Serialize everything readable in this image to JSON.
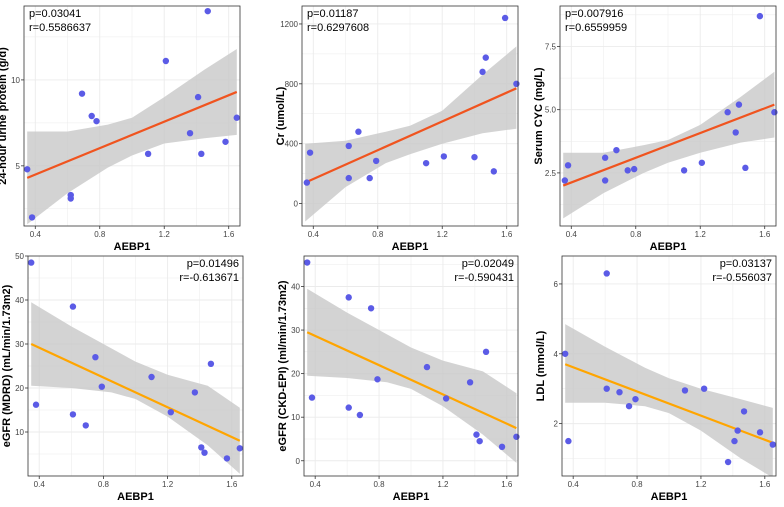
{
  "chart_data": [
    {
      "type": "scatter",
      "id": "urine-protein",
      "xlabel": "AEBP1",
      "ylabel": "24-hour urine protein (g/d)",
      "p_text": "p=0.03041",
      "r_text": "r=0.5586637",
      "stats_position": "top-left",
      "xlim": [
        0.33,
        1.67
      ],
      "ylim": [
        1.5,
        14.3
      ],
      "xticks": [
        0.4,
        0.8,
        1.2,
        1.6
      ],
      "xtick_labels": [
        "0.4",
        "0.8",
        "1.2",
        "1.6"
      ],
      "yticks": [
        5,
        10
      ],
      "ytick_labels": [
        "5",
        "10"
      ],
      "points": [
        {
          "x": 0.35,
          "y": 4.8
        },
        {
          "x": 0.38,
          "y": 2.0
        },
        {
          "x": 0.62,
          "y": 3.3
        },
        {
          "x": 0.62,
          "y": 3.1
        },
        {
          "x": 0.69,
          "y": 9.2
        },
        {
          "x": 0.75,
          "y": 7.9
        },
        {
          "x": 0.78,
          "y": 7.6
        },
        {
          "x": 1.1,
          "y": 5.7
        },
        {
          "x": 1.21,
          "y": 11.1
        },
        {
          "x": 1.36,
          "y": 6.9
        },
        {
          "x": 1.41,
          "y": 9.0
        },
        {
          "x": 1.43,
          "y": 5.7
        },
        {
          "x": 1.47,
          "y": 14.0
        },
        {
          "x": 1.58,
          "y": 6.4
        },
        {
          "x": 1.65,
          "y": 7.8
        }
      ],
      "fit_line": {
        "x": [
          0.35,
          1.65
        ],
        "y": [
          4.3,
          9.3
        ]
      },
      "ci_band": {
        "x": [
          0.35,
          0.6,
          0.85,
          1.0,
          1.2,
          1.45,
          1.65
        ],
        "lower": [
          1.6,
          3.4,
          4.9,
          5.6,
          6.3,
          6.6,
          6.8
        ],
        "upper": [
          7.0,
          7.0,
          7.4,
          7.8,
          9.0,
          10.6,
          11.8
        ]
      },
      "point_color": "#5b5be6",
      "line_color": "#f0541f",
      "band_color": "#c8c8c8"
    },
    {
      "type": "scatter",
      "id": "creatinine",
      "xlabel": "AEBP1",
      "ylabel": "Cr (umol/L)",
      "p_text": "p=0.01187",
      "r_text": "r=0.6297608",
      "stats_position": "top-left",
      "xlim": [
        0.33,
        1.67
      ],
      "ylim": [
        -150,
        1320
      ],
      "xticks": [
        0.4,
        0.8,
        1.2,
        1.6
      ],
      "xtick_labels": [
        "0.4",
        "0.8",
        "1.2",
        "1.6"
      ],
      "yticks": [
        0,
        400,
        800,
        1200
      ],
      "ytick_labels": [
        "0",
        "400",
        "800",
        "1200"
      ],
      "points": [
        {
          "x": 0.36,
          "y": 140
        },
        {
          "x": 0.38,
          "y": 340
        },
        {
          "x": 0.62,
          "y": 385
        },
        {
          "x": 0.62,
          "y": 170
        },
        {
          "x": 0.68,
          "y": 480
        },
        {
          "x": 0.75,
          "y": 170
        },
        {
          "x": 0.79,
          "y": 285
        },
        {
          "x": 1.1,
          "y": 270
        },
        {
          "x": 1.21,
          "y": 315
        },
        {
          "x": 1.4,
          "y": 310
        },
        {
          "x": 1.45,
          "y": 880
        },
        {
          "x": 1.47,
          "y": 975
        },
        {
          "x": 1.52,
          "y": 215
        },
        {
          "x": 1.59,
          "y": 1240
        },
        {
          "x": 1.66,
          "y": 800
        }
      ],
      "fit_line": {
        "x": [
          0.35,
          1.66
        ],
        "y": [
          140,
          770
        ]
      },
      "ci_band": {
        "x": [
          0.35,
          0.6,
          0.85,
          1.0,
          1.2,
          1.45,
          1.66
        ],
        "lower": [
          -120,
          110,
          270,
          330,
          400,
          470,
          500
        ],
        "upper": [
          400,
          420,
          480,
          520,
          620,
          860,
          1050
        ]
      },
      "point_color": "#5b5be6",
      "line_color": "#f0541f",
      "band_color": "#c8c8c8"
    },
    {
      "type": "scatter",
      "id": "serum-cyc",
      "xlabel": "AEBP1",
      "ylabel": "Serum CYC (mg/L)",
      "p_text": "p=0.007916",
      "r_text": "r=0.6559959",
      "stats_position": "top-left",
      "xlim": [
        0.33,
        1.67
      ],
      "ylim": [
        0.4,
        9.1
      ],
      "xticks": [
        0.4,
        0.8,
        1.2,
        1.6
      ],
      "xtick_labels": [
        "0.4",
        "0.8",
        "1.2",
        "1.6"
      ],
      "yticks": [
        2.5,
        5.0,
        7.5
      ],
      "ytick_labels": [
        "2.5",
        "5.0",
        "7.5"
      ],
      "points": [
        {
          "x": 0.36,
          "y": 2.2
        },
        {
          "x": 0.38,
          "y": 2.8
        },
        {
          "x": 0.61,
          "y": 3.1
        },
        {
          "x": 0.61,
          "y": 2.2
        },
        {
          "x": 0.68,
          "y": 3.4
        },
        {
          "x": 0.75,
          "y": 2.6
        },
        {
          "x": 0.79,
          "y": 2.65
        },
        {
          "x": 1.1,
          "y": 2.6
        },
        {
          "x": 1.21,
          "y": 2.9
        },
        {
          "x": 1.37,
          "y": 4.9
        },
        {
          "x": 1.42,
          "y": 4.1
        },
        {
          "x": 1.44,
          "y": 5.2
        },
        {
          "x": 1.48,
          "y": 2.7
        },
        {
          "x": 1.57,
          "y": 8.7
        },
        {
          "x": 1.66,
          "y": 4.9
        }
      ],
      "fit_line": {
        "x": [
          0.35,
          1.66
        ],
        "y": [
          2.0,
          5.2
        ]
      },
      "ci_band": {
        "x": [
          0.35,
          0.6,
          0.85,
          1.0,
          1.2,
          1.45,
          1.66
        ],
        "lower": [
          0.7,
          1.7,
          2.5,
          2.9,
          3.3,
          3.7,
          3.9
        ],
        "upper": [
          3.3,
          3.3,
          3.6,
          3.8,
          4.4,
          5.5,
          6.5
        ]
      },
      "point_color": "#5b5be6",
      "line_color": "#f0541f",
      "band_color": "#c8c8c8"
    },
    {
      "type": "scatter",
      "id": "egfr-mdrd",
      "xlabel": "AEBP1",
      "ylabel": "eGFR (MDRD) (mL/min/1.73m2)",
      "p_text": "p=0.01496",
      "r_text": "r=-0.613671",
      "stats_position": "top-right",
      "xlim": [
        0.33,
        1.67
      ],
      "ylim": [
        0,
        50
      ],
      "xticks": [
        0.4,
        0.8,
        1.2,
        1.6
      ],
      "xtick_labels": [
        "0.4",
        "0.8",
        "1.2",
        "1.6"
      ],
      "yticks": [
        10,
        20,
        30,
        40,
        50
      ],
      "ytick_labels": [
        "10",
        "20",
        "30",
        "40",
        "50"
      ],
      "points": [
        {
          "x": 0.35,
          "y": 48.5
        },
        {
          "x": 0.38,
          "y": 16.2
        },
        {
          "x": 0.61,
          "y": 38.5
        },
        {
          "x": 0.61,
          "y": 14.0
        },
        {
          "x": 0.69,
          "y": 11.5
        },
        {
          "x": 0.75,
          "y": 27.0
        },
        {
          "x": 0.79,
          "y": 20.3
        },
        {
          "x": 1.1,
          "y": 22.5
        },
        {
          "x": 1.22,
          "y": 14.5
        },
        {
          "x": 1.37,
          "y": 19.0
        },
        {
          "x": 1.41,
          "y": 6.5
        },
        {
          "x": 1.43,
          "y": 5.3
        },
        {
          "x": 1.47,
          "y": 25.5
        },
        {
          "x": 1.57,
          "y": 4.0
        },
        {
          "x": 1.65,
          "y": 6.3
        }
      ],
      "fit_line": {
        "x": [
          0.35,
          1.65
        ],
        "y": [
          30.0,
          8.0
        ]
      },
      "ci_band": {
        "x": [
          0.35,
          0.6,
          0.85,
          1.0,
          1.2,
          1.45,
          1.65
        ],
        "lower": [
          20.5,
          20.0,
          19.0,
          17.5,
          13.5,
          7.0,
          0.5
        ],
        "upper": [
          39.5,
          34.0,
          29.0,
          26.0,
          23.0,
          20.5,
          15.5
        ]
      },
      "point_color": "#5b5be6",
      "line_color": "#ffa500",
      "band_color": "#c8c8c8"
    },
    {
      "type": "scatter",
      "id": "egfr-ckd-epi",
      "xlabel": "AEBP1",
      "ylabel": "eGFR (CKD-EPI) (ml/min/1.73m2)",
      "p_text": "p=0.02049",
      "r_text": "r=-0.590431",
      "stats_position": "top-right",
      "xlim": [
        0.33,
        1.67
      ],
      "ylim": [
        -3.5,
        47
      ],
      "xticks": [
        0.4,
        0.8,
        1.2,
        1.6
      ],
      "xtick_labels": [
        "0.4",
        "0.8",
        "1.2",
        "1.6"
      ],
      "yticks": [
        0,
        10,
        20,
        30,
        40
      ],
      "ytick_labels": [
        "0",
        "10",
        "20",
        "30",
        "40"
      ],
      "points": [
        {
          "x": 0.35,
          "y": 45.5
        },
        {
          "x": 0.38,
          "y": 14.5
        },
        {
          "x": 0.61,
          "y": 37.5
        },
        {
          "x": 0.61,
          "y": 12.2
        },
        {
          "x": 0.68,
          "y": 10.5
        },
        {
          "x": 0.75,
          "y": 35.0
        },
        {
          "x": 0.79,
          "y": 18.7
        },
        {
          "x": 1.1,
          "y": 21.5
        },
        {
          "x": 1.22,
          "y": 14.3
        },
        {
          "x": 1.37,
          "y": 18.0
        },
        {
          "x": 1.41,
          "y": 6.0
        },
        {
          "x": 1.43,
          "y": 4.5
        },
        {
          "x": 1.47,
          "y": 25.0
        },
        {
          "x": 1.57,
          "y": 3.2
        },
        {
          "x": 1.66,
          "y": 5.5
        }
      ],
      "fit_line": {
        "x": [
          0.35,
          1.66
        ],
        "y": [
          29.5,
          7.5
        ]
      },
      "ci_band": {
        "x": [
          0.35,
          0.6,
          0.85,
          1.0,
          1.2,
          1.45,
          1.66
        ],
        "lower": [
          19.5,
          19.0,
          18.0,
          16.5,
          12.5,
          6.0,
          -0.5
        ],
        "upper": [
          39.5,
          34.0,
          29.0,
          26.0,
          23.0,
          20.5,
          15.5
        ]
      },
      "point_color": "#5b5be6",
      "line_color": "#ffa500",
      "band_color": "#c8c8c8"
    },
    {
      "type": "scatter",
      "id": "ldl",
      "xlabel": "AEBP1",
      "ylabel": "LDL (mmol/L)",
      "p_text": "p=0.03137",
      "r_text": "r=-0.556037",
      "stats_position": "top-right",
      "xlim": [
        0.33,
        1.67
      ],
      "ylim": [
        0.5,
        6.8
      ],
      "xticks": [
        0.4,
        0.8,
        1.2,
        1.6
      ],
      "xtick_labels": [
        "0.4",
        "0.8",
        "1.2",
        "1.6"
      ],
      "yticks": [
        2,
        4,
        6
      ],
      "ytick_labels": [
        "2",
        "4",
        "6"
      ],
      "points": [
        {
          "x": 0.35,
          "y": 4.0
        },
        {
          "x": 0.37,
          "y": 1.5
        },
        {
          "x": 0.61,
          "y": 6.3
        },
        {
          "x": 0.61,
          "y": 3.0
        },
        {
          "x": 0.69,
          "y": 2.9
        },
        {
          "x": 0.75,
          "y": 2.5
        },
        {
          "x": 0.79,
          "y": 2.7
        },
        {
          "x": 1.1,
          "y": 2.95
        },
        {
          "x": 1.22,
          "y": 3.0
        },
        {
          "x": 1.37,
          "y": 0.9
        },
        {
          "x": 1.41,
          "y": 1.5
        },
        {
          "x": 1.43,
          "y": 1.8
        },
        {
          "x": 1.47,
          "y": 2.35
        },
        {
          "x": 1.57,
          "y": 1.75
        },
        {
          "x": 1.65,
          "y": 1.4
        }
      ],
      "fit_line": {
        "x": [
          0.35,
          1.65
        ],
        "y": [
          3.7,
          1.45
        ]
      },
      "ci_band": {
        "x": [
          0.35,
          0.6,
          0.85,
          1.0,
          1.2,
          1.45,
          1.65
        ],
        "lower": [
          2.6,
          2.6,
          2.5,
          2.3,
          1.8,
          1.0,
          0.45
        ],
        "upper": [
          4.85,
          4.2,
          3.6,
          3.3,
          3.0,
          2.7,
          2.45
        ]
      },
      "point_color": "#5b5be6",
      "line_color": "#ffa500",
      "band_color": "#c8c8c8"
    }
  ]
}
